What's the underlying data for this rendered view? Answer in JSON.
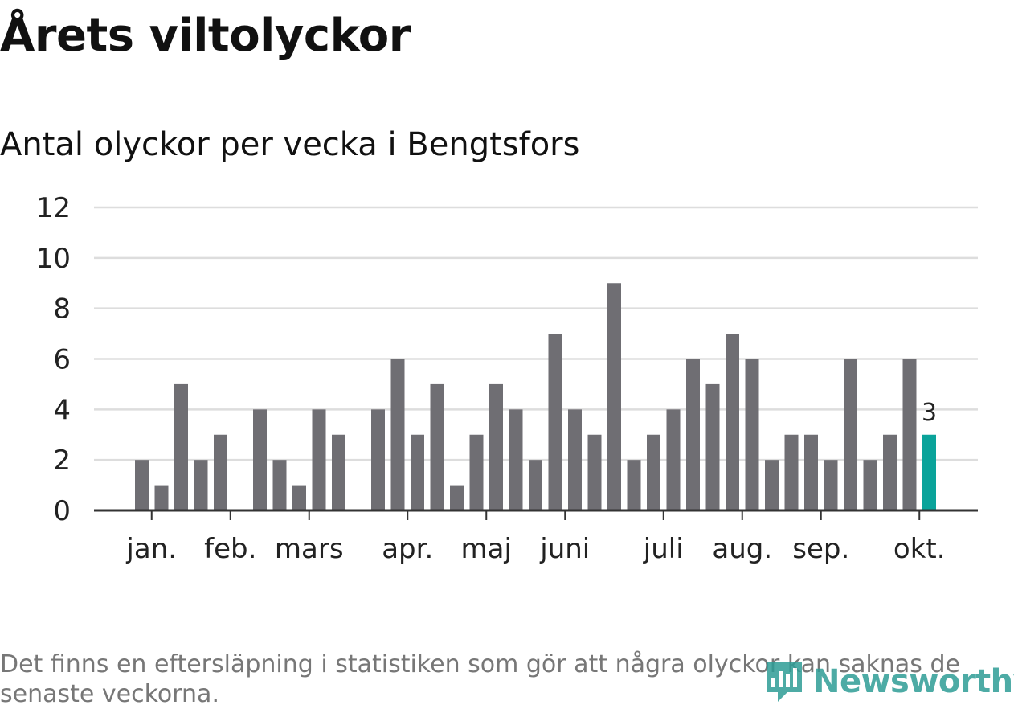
{
  "header": {
    "title": "Årets viltolyckor",
    "subtitle": "Antal olyckor per vecka i Bengtsfors"
  },
  "footnote": "Det finns en eftersläpning i statistiken som gör att några olyckor kan saknas de senaste veckorna.",
  "brand": {
    "name": "Newsworthy"
  },
  "colors": {
    "bar": "#6f6e73",
    "highlight": "#0aa39a",
    "grid": "#dddddd",
    "axis": "#333333",
    "text": "#222222"
  },
  "chart_data": {
    "type": "bar",
    "title": "Antal olyckor per vecka i Bengtsfors",
    "xlabel": "",
    "ylabel": "",
    "ylim": [
      0,
      12
    ],
    "yticks": [
      0,
      2,
      4,
      6,
      8,
      10,
      12
    ],
    "grid": true,
    "week_slots": 43,
    "values": [
      null,
      null,
      2,
      1,
      5,
      2,
      3,
      null,
      4,
      2,
      1,
      4,
      3,
      null,
      4,
      6,
      3,
      5,
      1,
      3,
      5,
      4,
      2,
      7,
      4,
      3,
      9,
      2,
      3,
      4,
      6,
      5,
      7,
      6,
      2,
      3,
      3,
      2,
      6,
      2,
      3,
      6,
      3
    ],
    "highlight_index": 42,
    "highlight_label": "3",
    "month_labels": [
      {
        "label": "jan.",
        "slot": 2.5
      },
      {
        "label": "feb.",
        "slot": 6.5
      },
      {
        "label": "mars",
        "slot": 10.5
      },
      {
        "label": "apr.",
        "slot": 15.5
      },
      {
        "label": "maj",
        "slot": 19.5
      },
      {
        "label": "juni",
        "slot": 23.5
      },
      {
        "label": "juli",
        "slot": 28.5
      },
      {
        "label": "aug.",
        "slot": 32.5
      },
      {
        "label": "sep.",
        "slot": 36.5
      },
      {
        "label": "okt.",
        "slot": 41.5
      }
    ],
    "tick_slots": [
      2.5,
      6.5,
      10.5,
      15.5,
      19.5,
      23.5,
      28.5,
      32.5,
      36.5,
      41.5
    ]
  }
}
